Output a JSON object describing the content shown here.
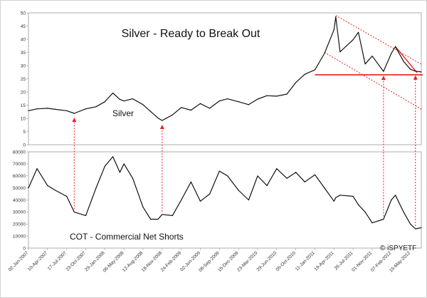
{
  "chart_data": [
    {
      "type": "line",
      "title": "Silver - Ready to Break Out",
      "series_label": "Silver",
      "ylim": [
        0,
        50
      ],
      "yticks": [
        0,
        5,
        10,
        15,
        20,
        25,
        30,
        35,
        40,
        45,
        50
      ],
      "series": [
        {
          "name": "Silver",
          "x": [
            "2007-01-02",
            "2007-02-15",
            "2007-04-10",
            "2007-05-20",
            "2007-07-17",
            "2007-08-25",
            "2007-10-23",
            "2007-12-15",
            "2008-01-29",
            "2008-03-10",
            "2008-04-15",
            "2008-05-06",
            "2008-06-20",
            "2008-08-12",
            "2008-09-20",
            "2008-10-28",
            "2008-11-18",
            "2009-01-10",
            "2009-02-24",
            "2009-04-15",
            "2009-06-02",
            "2009-07-20",
            "2009-09-08",
            "2009-10-20",
            "2009-12-15",
            "2010-02-05",
            "2010-03-23",
            "2010-05-10",
            "2010-06-29",
            "2010-08-20",
            "2010-10-05",
            "2010-11-20",
            "2011-01-11",
            "2011-03-01",
            "2011-04-19",
            "2011-04-28",
            "2011-05-20",
            "2011-07-26",
            "2011-08-22",
            "2011-09-26",
            "2011-11-01",
            "2011-12-29",
            "2012-02-07",
            "2012-02-28",
            "2012-04-10",
            "2012-05-15",
            "2012-06-10",
            "2012-07-10"
          ],
          "values": [
            12.9,
            13.6,
            13.8,
            13.4,
            12.9,
            11.9,
            13.6,
            14.4,
            16.3,
            19.6,
            17.2,
            16.6,
            17.4,
            15.2,
            12.6,
            10.1,
            9.2,
            11.3,
            14.1,
            13.1,
            15.6,
            13.8,
            16.6,
            17.4,
            16.3,
            15.2,
            17.3,
            18.6,
            18.4,
            19.2,
            23.6,
            26.7,
            28.4,
            34.6,
            43.6,
            48.5,
            35.2,
            39.8,
            42.6,
            30.6,
            33.6,
            27.8,
            34.6,
            37.2,
            31.6,
            28.6,
            27.9,
            27.6
          ]
        }
      ],
      "annotations": {
        "support_level": 26.5
      }
    },
    {
      "type": "line",
      "series_label": "COT - Commercial Net Shorts",
      "ylim": [
        0,
        80000
      ],
      "yticks": [
        0,
        10000,
        20000,
        30000,
        40000,
        50000,
        60000,
        70000,
        80000
      ],
      "series": [
        {
          "name": "COT - Commercial Net Shorts",
          "x": [
            "2007-01-02",
            "2007-02-15",
            "2007-04-10",
            "2007-05-20",
            "2007-07-17",
            "2007-08-25",
            "2007-10-23",
            "2007-12-15",
            "2008-01-29",
            "2008-03-10",
            "2008-04-15",
            "2008-05-06",
            "2008-06-20",
            "2008-08-12",
            "2008-09-20",
            "2008-10-28",
            "2008-11-18",
            "2009-01-10",
            "2009-02-24",
            "2009-04-15",
            "2009-06-02",
            "2009-07-20",
            "2009-09-08",
            "2009-10-20",
            "2009-12-15",
            "2010-02-05",
            "2010-03-23",
            "2010-05-10",
            "2010-06-29",
            "2010-08-20",
            "2010-10-05",
            "2010-11-20",
            "2011-01-11",
            "2011-03-01",
            "2011-04-19",
            "2011-04-28",
            "2011-05-20",
            "2011-07-26",
            "2011-08-22",
            "2011-09-26",
            "2011-11-01",
            "2011-12-29",
            "2012-02-07",
            "2012-02-28",
            "2012-04-10",
            "2012-05-15",
            "2012-06-10",
            "2012-07-10"
          ],
          "values": [
            50000,
            66000,
            52000,
            48000,
            43000,
            30000,
            27000,
            50000,
            68000,
            76000,
            63000,
            70000,
            58000,
            34000,
            24000,
            24000,
            28000,
            27000,
            40000,
            55000,
            39000,
            45000,
            64000,
            60000,
            48000,
            40000,
            60000,
            52000,
            66000,
            58000,
            63000,
            55000,
            61000,
            50000,
            39000,
            42000,
            44000,
            43000,
            36000,
            30000,
            21000,
            24000,
            40000,
            44000,
            30000,
            20000,
            16000,
            17000
          ]
        }
      ]
    }
  ],
  "x_tick_labels": [
    "02-Jan-2007",
    "10-Apr-2007",
    "17-Jul-2007",
    "23-Oct-2007",
    "29-Jan-2008",
    "06-May-2008",
    "12-Aug-2008",
    "18-Nov-2008",
    "24-Feb-2009",
    "02-Jun-2009",
    "08-Sep-2009",
    "15-Dec-2009",
    "23-Mar-2010",
    "29-Jun-2010",
    "05-Oct-2010",
    "11-Jan-2011",
    "19-Apr-2011",
    "26-Jul-2011",
    "01-Nov-2011",
    "07-Feb-2012",
    "15-May-2012"
  ],
  "x_tick_dates": [
    "2007-01-02",
    "2007-04-10",
    "2007-07-17",
    "2007-10-23",
    "2008-01-29",
    "2008-05-06",
    "2008-08-12",
    "2008-11-18",
    "2009-02-24",
    "2009-06-02",
    "2009-09-08",
    "2009-12-15",
    "2010-03-23",
    "2010-06-29",
    "2010-10-05",
    "2011-01-11",
    "2011-04-19",
    "2011-07-26",
    "2011-11-01",
    "2012-02-07",
    "2012-05-15"
  ],
  "signal_dates": [
    "2007-08-25",
    "2008-11-18",
    "2011-12-29",
    "2012-06-10"
  ],
  "credit": "© iSPYETF",
  "colors": {
    "line": "#111111",
    "annotation": "#e8201c",
    "frame": "#9a9a9a"
  }
}
